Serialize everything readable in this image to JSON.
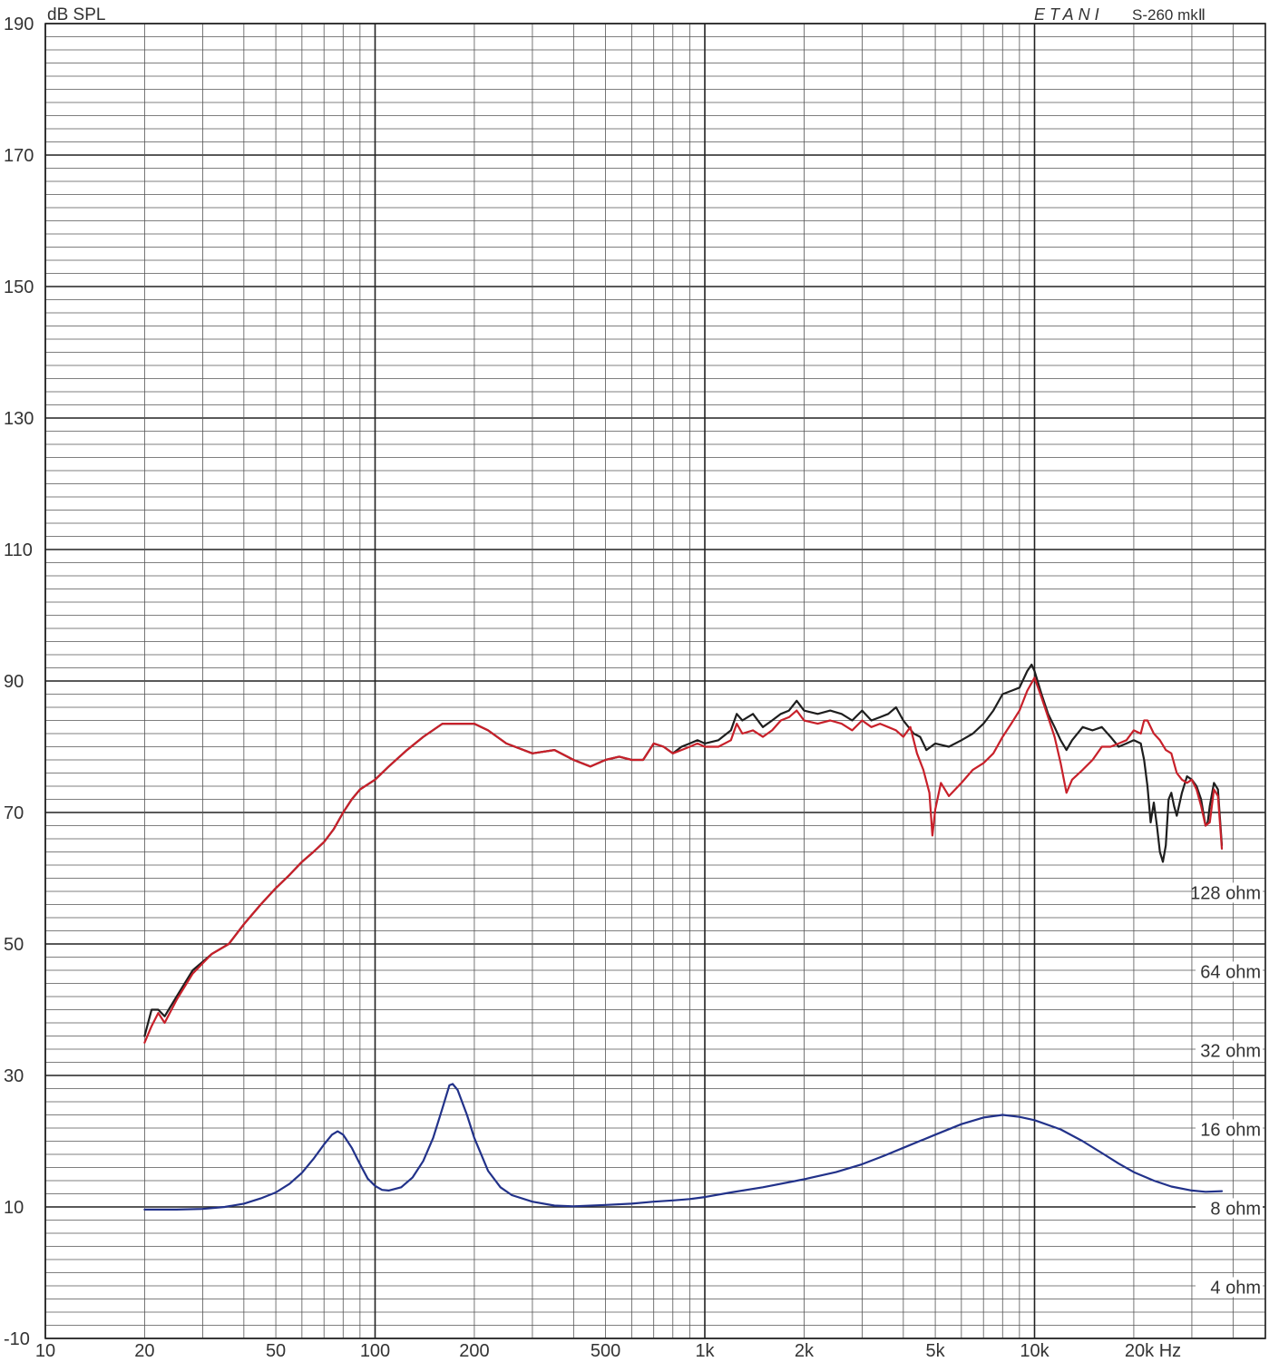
{
  "chart_data": {
    "type": "line",
    "brand": "ETANI",
    "model": "S-260 mkⅡ",
    "ylabel": "dB SPL",
    "xunit": "Hz",
    "xscale": "log",
    "xlim": [
      10,
      37000
    ],
    "ylim": [
      -10,
      190
    ],
    "grid": true,
    "colors": {
      "grid": "#555555",
      "grid_major": "#222222",
      "black": "#1e1e1e",
      "red": "#c8202a",
      "blue": "#22328a"
    },
    "y_ticks": [
      "190",
      "170",
      "150",
      "130",
      "110",
      "90",
      "70",
      "50",
      "30",
      "10",
      "-10"
    ],
    "x_ticks": [
      {
        "f": 10,
        "label": "10"
      },
      {
        "f": 20,
        "label": "20"
      },
      {
        "f": 50,
        "label": "50"
      },
      {
        "f": 100,
        "label": "100"
      },
      {
        "f": 200,
        "label": "200"
      },
      {
        "f": 500,
        "label": "500"
      },
      {
        "f": 1000,
        "label": "1k"
      },
      {
        "f": 2000,
        "label": "2k"
      },
      {
        "f": 5000,
        "label": "5k"
      },
      {
        "f": 10000,
        "label": "10k"
      },
      {
        "f": 20000,
        "label": "20k Hz"
      }
    ],
    "ohm_labels": [
      {
        "label": "128 ohm",
        "db": 57.8
      },
      {
        "label": "64 ohm",
        "db": 45.8
      },
      {
        "label": "32 ohm",
        "db": 33.8
      },
      {
        "label": "16 ohm",
        "db": 21.8
      },
      {
        "label": "8 ohm",
        "db": 9.8
      },
      {
        "label": "4 ohm",
        "db": -2.2
      }
    ],
    "series": [
      {
        "color": "black",
        "points": [
          [
            20,
            36
          ],
          [
            21,
            40
          ],
          [
            22,
            40
          ],
          [
            23,
            39
          ],
          [
            25,
            42
          ],
          [
            28,
            46
          ],
          [
            32,
            48.5
          ],
          [
            36,
            50
          ],
          [
            40,
            53
          ],
          [
            45,
            56
          ],
          [
            50,
            58.5
          ],
          [
            55,
            60.5
          ],
          [
            60,
            62.5
          ],
          [
            65,
            64
          ],
          [
            70,
            65.5
          ],
          [
            75,
            67.5
          ],
          [
            80,
            70
          ],
          [
            85,
            72
          ],
          [
            90,
            73.5
          ],
          [
            100,
            75
          ],
          [
            110,
            77
          ],
          [
            125,
            79.5
          ],
          [
            140,
            81.5
          ],
          [
            160,
            83.5
          ],
          [
            180,
            83.5
          ],
          [
            200,
            83.5
          ],
          [
            220,
            82.5
          ],
          [
            250,
            80.5
          ],
          [
            300,
            79
          ],
          [
            350,
            79.5
          ],
          [
            400,
            78
          ],
          [
            450,
            77
          ],
          [
            500,
            78
          ],
          [
            550,
            78.5
          ],
          [
            600,
            78
          ],
          [
            650,
            78
          ],
          [
            700,
            80.5
          ],
          [
            750,
            80
          ],
          [
            800,
            79
          ],
          [
            850,
            80
          ],
          [
            900,
            80.5
          ],
          [
            950,
            81
          ],
          [
            1000,
            80.5
          ],
          [
            1100,
            81
          ],
          [
            1200,
            82.5
          ],
          [
            1250,
            85
          ],
          [
            1300,
            84
          ],
          [
            1400,
            85
          ],
          [
            1500,
            83
          ],
          [
            1600,
            84
          ],
          [
            1700,
            85
          ],
          [
            1800,
            85.5
          ],
          [
            1900,
            87
          ],
          [
            2000,
            85.5
          ],
          [
            2200,
            85
          ],
          [
            2400,
            85.5
          ],
          [
            2600,
            85
          ],
          [
            2800,
            84
          ],
          [
            3000,
            85.5
          ],
          [
            3200,
            84
          ],
          [
            3400,
            84.5
          ],
          [
            3600,
            85
          ],
          [
            3800,
            86
          ],
          [
            4000,
            84
          ],
          [
            4300,
            82
          ],
          [
            4500,
            81.5
          ],
          [
            4700,
            79.5
          ],
          [
            5000,
            80.5
          ],
          [
            5500,
            80
          ],
          [
            6000,
            81
          ],
          [
            6500,
            82
          ],
          [
            7000,
            83.5
          ],
          [
            7500,
            85.5
          ],
          [
            8000,
            88
          ],
          [
            8500,
            88.5
          ],
          [
            9000,
            89
          ],
          [
            9500,
            91.5
          ],
          [
            9800,
            92.5
          ],
          [
            10000,
            91.5
          ],
          [
            10500,
            88
          ],
          [
            11000,
            85
          ],
          [
            11500,
            83
          ],
          [
            12000,
            81
          ],
          [
            12500,
            79.5
          ],
          [
            13000,
            81
          ],
          [
            14000,
            83
          ],
          [
            15000,
            82.5
          ],
          [
            16000,
            83
          ],
          [
            17000,
            81.5
          ],
          [
            18000,
            80
          ],
          [
            19000,
            80.5
          ],
          [
            20000,
            81
          ],
          [
            21000,
            80.5
          ],
          [
            21500,
            78
          ],
          [
            22000,
            74
          ],
          [
            22500,
            68.5
          ],
          [
            23000,
            71.5
          ],
          [
            23500,
            68
          ],
          [
            24000,
            64
          ],
          [
            24500,
            62.5
          ],
          [
            25000,
            65
          ],
          [
            25500,
            72
          ],
          [
            26000,
            73
          ],
          [
            26500,
            71
          ],
          [
            27000,
            69.5
          ],
          [
            28000,
            73
          ],
          [
            29000,
            75.5
          ],
          [
            30000,
            75
          ],
          [
            31000,
            74
          ],
          [
            32000,
            72
          ],
          [
            33000,
            68
          ],
          [
            33500,
            68.5
          ],
          [
            34000,
            71
          ],
          [
            35000,
            74.5
          ],
          [
            36000,
            73.5
          ],
          [
            37000,
            65
          ]
        ]
      },
      {
        "color": "red",
        "points": [
          [
            20,
            35
          ],
          [
            21,
            37.5
          ],
          [
            22,
            39.5
          ],
          [
            23,
            38
          ],
          [
            25,
            41.5
          ],
          [
            28,
            45.5
          ],
          [
            32,
            48.5
          ],
          [
            36,
            50
          ],
          [
            40,
            53
          ],
          [
            45,
            56
          ],
          [
            50,
            58.5
          ],
          [
            55,
            60.5
          ],
          [
            60,
            62.5
          ],
          [
            65,
            64
          ],
          [
            70,
            65.5
          ],
          [
            75,
            67.5
          ],
          [
            80,
            70
          ],
          [
            85,
            72
          ],
          [
            90,
            73.5
          ],
          [
            100,
            75
          ],
          [
            110,
            77
          ],
          [
            125,
            79.5
          ],
          [
            140,
            81.5
          ],
          [
            160,
            83.5
          ],
          [
            180,
            83.5
          ],
          [
            200,
            83.5
          ],
          [
            220,
            82.5
          ],
          [
            250,
            80.5
          ],
          [
            300,
            79
          ],
          [
            350,
            79.5
          ],
          [
            400,
            78
          ],
          [
            450,
            77
          ],
          [
            500,
            78
          ],
          [
            550,
            78.5
          ],
          [
            600,
            78
          ],
          [
            650,
            78
          ],
          [
            700,
            80.5
          ],
          [
            750,
            80
          ],
          [
            800,
            79
          ],
          [
            850,
            79.5
          ],
          [
            900,
            80
          ],
          [
            950,
            80.5
          ],
          [
            1000,
            80
          ],
          [
            1100,
            80
          ],
          [
            1200,
            81
          ],
          [
            1250,
            83.5
          ],
          [
            1300,
            82
          ],
          [
            1400,
            82.5
          ],
          [
            1500,
            81.5
          ],
          [
            1600,
            82.5
          ],
          [
            1700,
            84
          ],
          [
            1800,
            84.5
          ],
          [
            1900,
            85.5
          ],
          [
            2000,
            84
          ],
          [
            2200,
            83.5
          ],
          [
            2400,
            84
          ],
          [
            2600,
            83.5
          ],
          [
            2800,
            82.5
          ],
          [
            3000,
            84
          ],
          [
            3200,
            83
          ],
          [
            3400,
            83.5
          ],
          [
            3600,
            83
          ],
          [
            3800,
            82.5
          ],
          [
            4000,
            81.5
          ],
          [
            4200,
            83
          ],
          [
            4400,
            79
          ],
          [
            4600,
            76.5
          ],
          [
            4800,
            73
          ],
          [
            4900,
            66.5
          ],
          [
            5000,
            70.5
          ],
          [
            5200,
            74.5
          ],
          [
            5500,
            72.5
          ],
          [
            6000,
            74.5
          ],
          [
            6500,
            76.5
          ],
          [
            7000,
            77.5
          ],
          [
            7500,
            79
          ],
          [
            8000,
            81.5
          ],
          [
            8500,
            83.5
          ],
          [
            9000,
            85.5
          ],
          [
            9500,
            88.5
          ],
          [
            10000,
            90.5
          ],
          [
            10500,
            87.5
          ],
          [
            11000,
            84.5
          ],
          [
            11500,
            81.5
          ],
          [
            12000,
            77.5
          ],
          [
            12500,
            73
          ],
          [
            13000,
            75
          ],
          [
            14000,
            76.5
          ],
          [
            15000,
            78
          ],
          [
            16000,
            80
          ],
          [
            17000,
            80
          ],
          [
            18000,
            80.5
          ],
          [
            19000,
            81
          ],
          [
            20000,
            82.5
          ],
          [
            21000,
            82
          ],
          [
            21500,
            84
          ],
          [
            22000,
            84
          ],
          [
            23000,
            82
          ],
          [
            24000,
            81
          ],
          [
            25000,
            79.5
          ],
          [
            26000,
            79
          ],
          [
            27000,
            76
          ],
          [
            28000,
            75
          ],
          [
            29000,
            74.5
          ],
          [
            30000,
            75
          ],
          [
            31000,
            73.5
          ],
          [
            32000,
            71
          ],
          [
            33000,
            68
          ],
          [
            34000,
            68.5
          ],
          [
            35000,
            73.5
          ],
          [
            36000,
            72.5
          ],
          [
            37000,
            64.5
          ]
        ]
      },
      {
        "color": "blue",
        "points": [
          [
            20,
            9.6
          ],
          [
            25,
            9.6
          ],
          [
            30,
            9.7
          ],
          [
            35,
            10
          ],
          [
            40,
            10.5
          ],
          [
            45,
            11.3
          ],
          [
            50,
            12.2
          ],
          [
            55,
            13.5
          ],
          [
            60,
            15.2
          ],
          [
            65,
            17.3
          ],
          [
            70,
            19.5
          ],
          [
            74,
            21
          ],
          [
            77,
            21.5
          ],
          [
            80,
            21
          ],
          [
            85,
            19
          ],
          [
            90,
            16.5
          ],
          [
            95,
            14.3
          ],
          [
            100,
            13.2
          ],
          [
            105,
            12.6
          ],
          [
            110,
            12.5
          ],
          [
            120,
            13
          ],
          [
            130,
            14.5
          ],
          [
            140,
            17
          ],
          [
            150,
            20.5
          ],
          [
            160,
            25
          ],
          [
            168,
            28.5
          ],
          [
            172,
            28.7
          ],
          [
            178,
            27.8
          ],
          [
            190,
            24
          ],
          [
            200,
            20.5
          ],
          [
            220,
            15.5
          ],
          [
            240,
            13
          ],
          [
            260,
            11.8
          ],
          [
            300,
            10.8
          ],
          [
            350,
            10.2
          ],
          [
            400,
            10.1
          ],
          [
            500,
            10.3
          ],
          [
            600,
            10.5
          ],
          [
            700,
            10.8
          ],
          [
            800,
            11
          ],
          [
            900,
            11.2
          ],
          [
            1000,
            11.5
          ],
          [
            1200,
            12.2
          ],
          [
            1500,
            13
          ],
          [
            2000,
            14.2
          ],
          [
            2500,
            15.3
          ],
          [
            3000,
            16.5
          ],
          [
            3500,
            17.8
          ],
          [
            4000,
            19
          ],
          [
            5000,
            21
          ],
          [
            6000,
            22.6
          ],
          [
            7000,
            23.6
          ],
          [
            8000,
            24
          ],
          [
            9000,
            23.7
          ],
          [
            10000,
            23.2
          ],
          [
            12000,
            21.8
          ],
          [
            14000,
            20
          ],
          [
            16000,
            18.2
          ],
          [
            18000,
            16.6
          ],
          [
            20000,
            15.3
          ],
          [
            23000,
            14
          ],
          [
            26000,
            13.1
          ],
          [
            30000,
            12.5
          ],
          [
            33000,
            12.3
          ],
          [
            37000,
            12.4
          ]
        ]
      }
    ]
  }
}
